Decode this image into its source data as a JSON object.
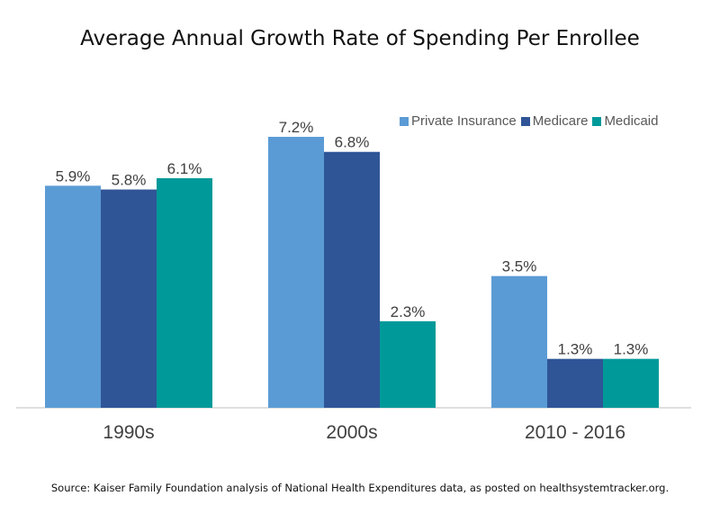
{
  "title": "Average Annual Growth Rate of Spending Per Enrollee",
  "source": "Source: Kaiser Family Foundation analysis of National Health Expenditures data, as posted on healthsystemtracker.org.",
  "chart_data": {
    "type": "bar",
    "categories": [
      "1990s",
      "2000s",
      "2010 - 2016"
    ],
    "series": [
      {
        "name": "Private Insurance",
        "color": "#5B9BD5",
        "values": [
          5.9,
          7.2,
          3.5
        ],
        "labels": [
          "5.9%",
          "7.2%",
          "3.5%"
        ]
      },
      {
        "name": "Medicare",
        "color": "#2F5597",
        "values": [
          5.8,
          6.8,
          1.3
        ],
        "labels": [
          "5.8%",
          "6.8%",
          "1.3%"
        ]
      },
      {
        "name": "Medicaid",
        "color": "#009999",
        "values": [
          6.1,
          2.3,
          1.3
        ],
        "labels": [
          "6.1%",
          "2.3%",
          "1.3%"
        ]
      }
    ],
    "ylim": [
      0,
      7.2
    ],
    "grid": false,
    "legend": "top-right",
    "xlabel": "",
    "ylabel": ""
  }
}
